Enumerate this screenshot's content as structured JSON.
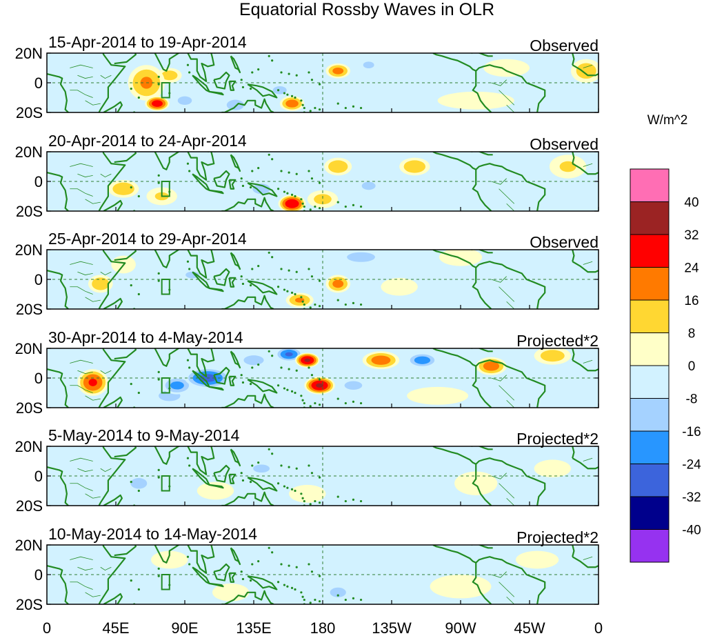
{
  "chart_data": {
    "type": "heatmap",
    "title": "Equatorial Rossby Waves in OLR",
    "colorbar_unit": "W/m^2",
    "colorbar_levels": [
      40,
      32,
      24,
      16,
      8,
      0,
      -8,
      -16,
      -24,
      -32,
      -40
    ],
    "colorbar_colors": [
      "#ff6eb4",
      "#9b2323",
      "#ff0000",
      "#ff7a00",
      "#ffd732",
      "#ffffc8",
      "#d2f2ff",
      "#a5d2ff",
      "#2896ff",
      "#3c64dc",
      "#00008c",
      "#9632f0"
    ],
    "x_ticks": [
      "0",
      "45E",
      "90E",
      "135E",
      "180",
      "135W",
      "90W",
      "45W",
      "0"
    ],
    "y_ticks": [
      "20N",
      "0",
      "20S"
    ],
    "lon_range": [
      0,
      360
    ],
    "lat_range": [
      -20,
      20
    ],
    "panels": [
      {
        "period": "15-Apr-2014 to 19-Apr-2014",
        "kind": "Observed",
        "blobs": [
          [
            65,
            0,
            12,
            12,
            18
          ],
          [
            72,
            -14,
            8,
            5,
            30
          ],
          [
            80,
            5,
            8,
            5,
            14
          ],
          [
            190,
            8,
            8,
            5,
            20
          ],
          [
            152,
            -5,
            10,
            6,
            -10
          ],
          [
            123,
            -15,
            8,
            5,
            -16
          ],
          [
            90,
            -12,
            8,
            5,
            -12
          ],
          [
            210,
            12,
            8,
            5,
            -10
          ],
          [
            262,
            0,
            30,
            6,
            -8
          ],
          [
            352,
            8,
            10,
            8,
            14
          ],
          [
            160,
            -14,
            8,
            5,
            22
          ],
          [
            280,
            -12,
            25,
            6,
            8
          ],
          [
            300,
            10,
            15,
            6,
            6
          ]
        ]
      },
      {
        "period": "20-Apr-2014 to 24-Apr-2014",
        "kind": "Observed",
        "blobs": [
          [
            160,
            -15,
            9,
            6,
            32
          ],
          [
            50,
            -5,
            10,
            6,
            16
          ],
          [
            190,
            10,
            9,
            6,
            16
          ],
          [
            240,
            10,
            10,
            6,
            16
          ],
          [
            75,
            -10,
            10,
            6,
            10
          ],
          [
            140,
            -5,
            10,
            6,
            -12
          ],
          [
            210,
            -3,
            10,
            6,
            -10
          ],
          [
            290,
            -5,
            20,
            8,
            -8
          ],
          [
            340,
            10,
            12,
            8,
            10
          ],
          [
            100,
            12,
            10,
            6,
            -8
          ],
          [
            180,
            -12,
            10,
            6,
            12
          ]
        ]
      },
      {
        "period": "25-Apr-2014 to 29-Apr-2014",
        "kind": "Observed",
        "blobs": [
          [
            190,
            -3,
            8,
            6,
            20
          ],
          [
            165,
            -14,
            9,
            5,
            18
          ],
          [
            35,
            -3,
            8,
            6,
            16
          ],
          [
            205,
            15,
            14,
            5,
            -14
          ],
          [
            95,
            3,
            10,
            5,
            -10
          ],
          [
            140,
            10,
            10,
            6,
            -8
          ],
          [
            270,
            15,
            14,
            6,
            8
          ],
          [
            230,
            -5,
            12,
            6,
            8
          ],
          [
            300,
            -8,
            10,
            6,
            -6
          ],
          [
            50,
            10,
            8,
            6,
            6
          ]
        ]
      },
      {
        "period": "30-Apr-2014 to 4-May-2014",
        "kind": "Projected*2",
        "blobs": [
          [
            30,
            -3,
            10,
            9,
            26
          ],
          [
            178,
            -5,
            10,
            6,
            34
          ],
          [
            170,
            12,
            8,
            5,
            34
          ],
          [
            218,
            12,
            12,
            6,
            22
          ],
          [
            290,
            8,
            10,
            6,
            22
          ],
          [
            105,
            0,
            15,
            7,
            -28
          ],
          [
            85,
            -5,
            10,
            6,
            -20
          ],
          [
            158,
            16,
            9,
            5,
            -26
          ],
          [
            245,
            12,
            10,
            5,
            -22
          ],
          [
            80,
            -12,
            10,
            5,
            -16
          ],
          [
            135,
            12,
            10,
            5,
            -14
          ],
          [
            200,
            -5,
            10,
            5,
            -12
          ],
          [
            330,
            15,
            12,
            6,
            14
          ],
          [
            255,
            -12,
            20,
            6,
            8
          ]
        ]
      },
      {
        "period": "5-May-2014 to 9-May-2014",
        "kind": "Projected*2",
        "blobs": [
          [
            60,
            -5,
            12,
            8,
            -10
          ],
          [
            90,
            10,
            10,
            6,
            -8
          ],
          [
            140,
            5,
            12,
            6,
            -10
          ],
          [
            200,
            -10,
            12,
            6,
            -6
          ],
          [
            240,
            8,
            14,
            6,
            -8
          ],
          [
            170,
            -12,
            12,
            6,
            8
          ],
          [
            110,
            -10,
            12,
            6,
            6
          ],
          [
            280,
            -5,
            14,
            8,
            6
          ],
          [
            330,
            5,
            12,
            6,
            6
          ]
        ]
      },
      {
        "period": "10-May-2014 to 14-May-2014",
        "kind": "Projected*2",
        "blobs": [
          [
            190,
            -12,
            8,
            5,
            -14
          ],
          [
            150,
            5,
            12,
            6,
            -6
          ],
          [
            230,
            5,
            15,
            6,
            -6
          ],
          [
            80,
            10,
            12,
            6,
            6
          ],
          [
            270,
            -8,
            20,
            8,
            6
          ],
          [
            120,
            -12,
            12,
            6,
            4
          ],
          [
            320,
            10,
            14,
            6,
            4
          ]
        ]
      }
    ]
  }
}
